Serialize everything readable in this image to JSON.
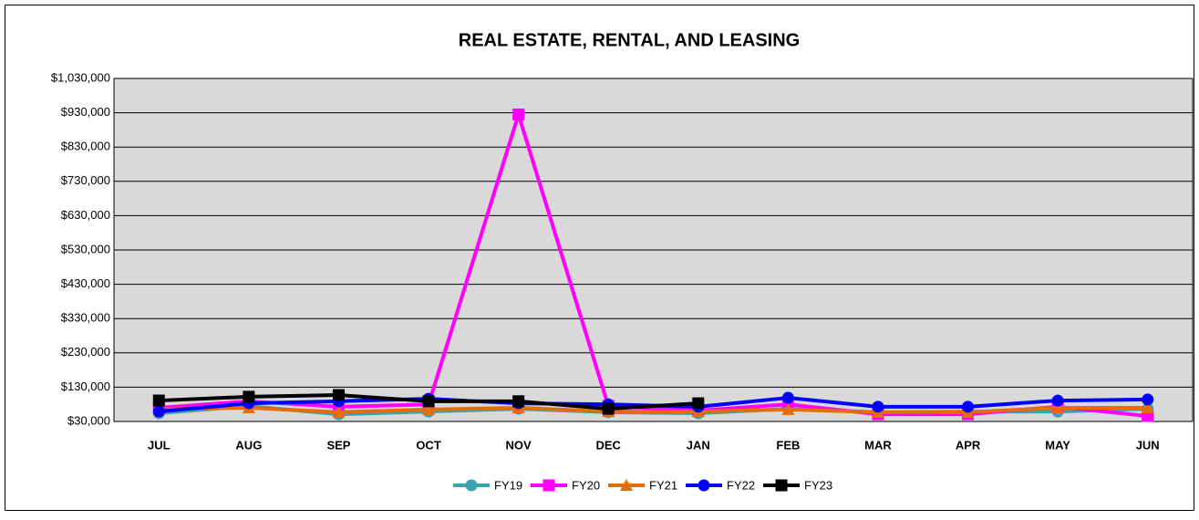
{
  "chart_data": {
    "type": "line",
    "title": "REAL ESTATE, RENTAL, AND LEASING",
    "categories": [
      "JUL",
      "AUG",
      "SEP",
      "OCT",
      "NOV",
      "DEC",
      "JAN",
      "FEB",
      "MAR",
      "APR",
      "MAY",
      "JUN"
    ],
    "series": [
      {
        "name": "FY19",
        "color": "#3aa3b0",
        "marker": "circle",
        "values": [
          54000,
          75000,
          51000,
          59000,
          67000,
          57000,
          54000,
          67000,
          57000,
          59000,
          59000,
          67000
        ]
      },
      {
        "name": "FY20",
        "color": "#ff00ff",
        "marker": "square",
        "values": [
          70000,
          89000,
          73000,
          80000,
          925000,
          75000,
          62000,
          80000,
          51000,
          51000,
          73000,
          46000
        ]
      },
      {
        "name": "FY21",
        "color": "#e46c0a",
        "marker": "triangle",
        "values": [
          65000,
          70000,
          57000,
          65000,
          70000,
          59000,
          59000,
          65000,
          57000,
          57000,
          70000,
          70000
        ]
      },
      {
        "name": "FY22",
        "color": "#0000ff",
        "marker": "circle",
        "values": [
          59000,
          83000,
          89000,
          96000,
          83000,
          80000,
          73000,
          99000,
          73000,
          73000,
          91000,
          94000
        ]
      },
      {
        "name": "FY23",
        "color": "#000000",
        "marker": "square",
        "values": [
          91000,
          102000,
          107000,
          89000,
          89000,
          67000,
          83000,
          null,
          null,
          null,
          null,
          null
        ]
      }
    ],
    "ylim": [
      30000,
      1030000
    ],
    "yticks": [
      {
        "value": 30000,
        "label": "$30,000"
      },
      {
        "value": 130000,
        "label": "$130,000"
      },
      {
        "value": 230000,
        "label": "$230,000"
      },
      {
        "value": 330000,
        "label": "$330,000"
      },
      {
        "value": 430000,
        "label": "$430,000"
      },
      {
        "value": 530000,
        "label": "$530,000"
      },
      {
        "value": 630000,
        "label": "$630,000"
      },
      {
        "value": 730000,
        "label": "$730,000"
      },
      {
        "value": 830000,
        "label": "$830,000"
      },
      {
        "value": 930000,
        "label": "$930,000"
      },
      {
        "value": 1030000,
        "label": "$1,030,000"
      }
    ],
    "grid": true,
    "legend": "bottom"
  }
}
